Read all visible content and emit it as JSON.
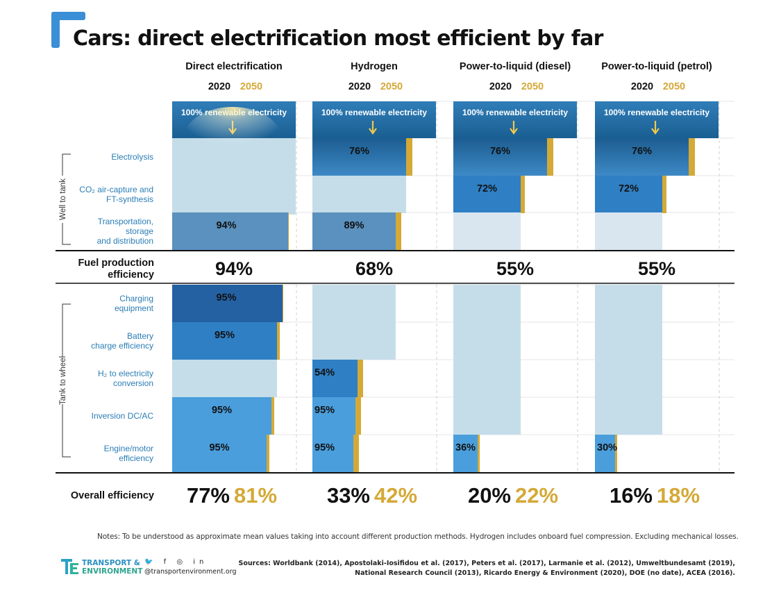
{
  "header": {
    "title": "Cars: direct electrification most efficient by far"
  },
  "chart_data": {
    "type": "bar",
    "title": "Cars: direct electrification most efficient by far",
    "years": [
      "2020",
      "2050"
    ],
    "source_label": "100% renewable electricity",
    "groups": {
      "well_to_tank": "Well to tank",
      "tank_to_wheel": "Tank to wheel"
    },
    "stages": [
      {
        "key": "electrolysis",
        "lines": [
          "Electrolysis"
        ],
        "group": "wtt"
      },
      {
        "key": "co2",
        "lines": [
          "CO₂ air-capture and",
          "FT-synthesis"
        ],
        "group": "wtt"
      },
      {
        "key": "transport",
        "lines": [
          "Transportation,",
          "storage",
          "and distribution"
        ],
        "group": "wtt"
      },
      {
        "key": "charging",
        "lines": [
          "Charging",
          "equipment"
        ],
        "group": "ttw"
      },
      {
        "key": "battery",
        "lines": [
          "Battery",
          "charge efficiency"
        ],
        "group": "ttw"
      },
      {
        "key": "h2",
        "lines": [
          "H₂ to electricity",
          "conversion"
        ],
        "group": "ttw"
      },
      {
        "key": "inversion",
        "lines": [
          "Inversion DC/AC"
        ],
        "group": "ttw"
      },
      {
        "key": "engine",
        "lines": [
          "Engine/motor",
          "efficiency"
        ],
        "group": "ttw"
      }
    ],
    "fuel_production_label": "Fuel production efficiency",
    "overall_label": "Overall efficiency",
    "series": [
      {
        "name": "Direct electrification",
        "steps": [
          {
            "stage": "electrolysis",
            "pct": null
          },
          {
            "stage": "co2",
            "pct": null
          },
          {
            "stage": "transport",
            "pct": 94,
            "label": "94%",
            "gain2050": 1
          },
          {
            "stage": "charging",
            "pct": 95,
            "label": "95%",
            "gain2050": 1
          },
          {
            "stage": "battery",
            "pct": 95,
            "label": "95%",
            "gain2050": 4
          },
          {
            "stage": "h2",
            "pct": null
          },
          {
            "stage": "inversion",
            "pct": 95,
            "label": "95%",
            "gain2050": 4
          },
          {
            "stage": "engine",
            "pct": 95,
            "label": "95%",
            "gain2050": 4
          }
        ],
        "fuel_production": "94%",
        "overall_2020": "77%",
        "overall_2050": "81%"
      },
      {
        "name": "Hydrogen",
        "steps": [
          {
            "stage": "electrolysis",
            "pct": 76,
            "label": "76%",
            "gain2050": 9
          },
          {
            "stage": "co2",
            "pct": null
          },
          {
            "stage": "transport",
            "pct": 89,
            "label": "89%",
            "gain2050": 8
          },
          {
            "stage": "charging",
            "pct": null
          },
          {
            "stage": "battery",
            "pct": null
          },
          {
            "stage": "h2",
            "pct": 54,
            "label": "54%",
            "gain2050": 8
          },
          {
            "stage": "inversion",
            "pct": 95,
            "label": "95%",
            "gain2050": 8
          },
          {
            "stage": "engine",
            "pct": 95,
            "label": "95%",
            "gain2050": 8
          }
        ],
        "fuel_production": "68%",
        "overall_2020": "33%",
        "overall_2050": "42%"
      },
      {
        "name": "Power-to-liquid (diesel)",
        "steps": [
          {
            "stage": "electrolysis",
            "pct": 76,
            "label": "76%",
            "gain2050": 9
          },
          {
            "stage": "co2",
            "pct": 72,
            "label": "72%",
            "gain2050": 6
          },
          {
            "stage": "transport",
            "pct": null
          },
          {
            "stage": "charging",
            "pct": null
          },
          {
            "stage": "battery",
            "pct": null
          },
          {
            "stage": "h2",
            "pct": null
          },
          {
            "stage": "inversion",
            "pct": null
          },
          {
            "stage": "engine",
            "pct": 36,
            "label": "36%",
            "gain2050": 3
          }
        ],
        "fuel_production": "55%",
        "overall_2020": "20%",
        "overall_2050": "22%"
      },
      {
        "name": "Power-to-liquid (petrol)",
        "steps": [
          {
            "stage": "electrolysis",
            "pct": 76,
            "label": "76%",
            "gain2050": 9
          },
          {
            "stage": "co2",
            "pct": 72,
            "label": "72%",
            "gain2050": 6
          },
          {
            "stage": "transport",
            "pct": null
          },
          {
            "stage": "charging",
            "pct": null
          },
          {
            "stage": "battery",
            "pct": null
          },
          {
            "stage": "h2",
            "pct": null
          },
          {
            "stage": "inversion",
            "pct": null
          },
          {
            "stage": "engine",
            "pct": 30,
            "label": "30%",
            "gain2050": 3
          }
        ],
        "fuel_production": "55%",
        "overall_2020": "16%",
        "overall_2050": "18%"
      }
    ],
    "colors": {
      "source": "#1a5f92",
      "source_glow": "#fde9a0",
      "remaining": "#c5dde9",
      "remaining_light": "#d9e6f0",
      "gain_2050": "#d4a937",
      "year_2050": "#d4a937",
      "stage_label": "#2a7db5",
      "bar_deep": "#2361a3",
      "bar_mid": "#2f7fc4",
      "bar_steel": "#5a91bf",
      "bar_light": "#4a9edc",
      "bar_grad_top": "#1c5d91",
      "bar_grad_bottom": "#3d89c6"
    }
  },
  "notes": "Notes: To be understood as approximate mean values taking into account different production methods. Hydrogen includes onboard fuel compression. Excluding mechanical losses.",
  "footer": {
    "org_line1": "TRANSPORT &",
    "org_line2": "ENVIRONMENT",
    "social": "🐦 f ◎ in",
    "website": "@transportenvironment.org",
    "sources_line1": "Sources: Worldbank (2014), Apostolaki-Iosifidou et al. (2017), Peters et al. (2017), Larmanie et al. (2012), Umweltbundesamt (2019),",
    "sources_line2": "National Research Council (2013), Ricardo Energy & Environment (2020), DOE (no date), ACEA (2016)."
  }
}
